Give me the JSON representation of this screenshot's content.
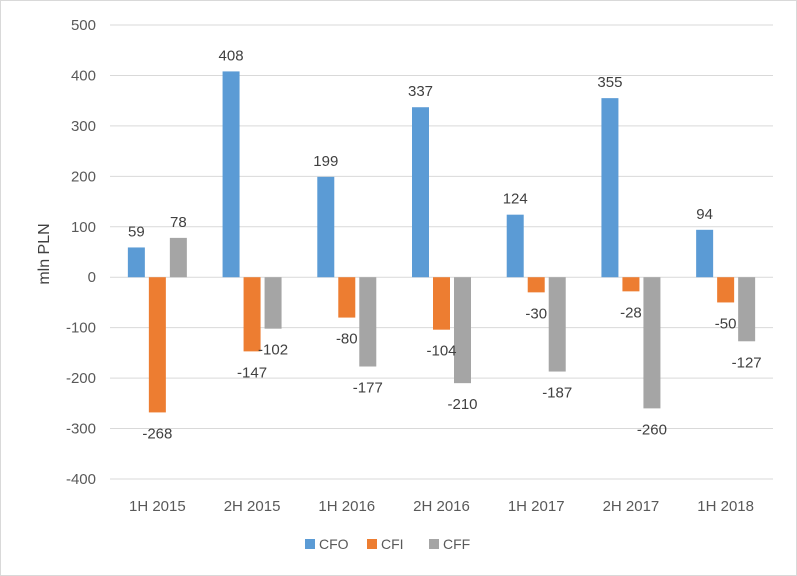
{
  "chart_data": {
    "type": "bar",
    "ylabel": "mln PLN",
    "xlabel": "",
    "ylim": [
      -400,
      500
    ],
    "y_tick_step": 100,
    "grid": true,
    "legend_position": "bottom",
    "categories": [
      "1H 2015",
      "2H 2015",
      "1H 2016",
      "2H 2016",
      "1H 2017",
      "2H 2017",
      "1H 2018"
    ],
    "series": [
      {
        "name": "CFO",
        "color": "#5b9bd5",
        "values": [
          59,
          408,
          199,
          337,
          124,
          355,
          94
        ]
      },
      {
        "name": "CFI",
        "color": "#ed7d31",
        "values": [
          -268,
          -147,
          -80,
          -104,
          -30,
          -28,
          -50
        ]
      },
      {
        "name": "CFF",
        "color": "#a5a5a5",
        "values": [
          78,
          -102,
          -177,
          -210,
          -187,
          -260,
          -127
        ]
      }
    ]
  }
}
